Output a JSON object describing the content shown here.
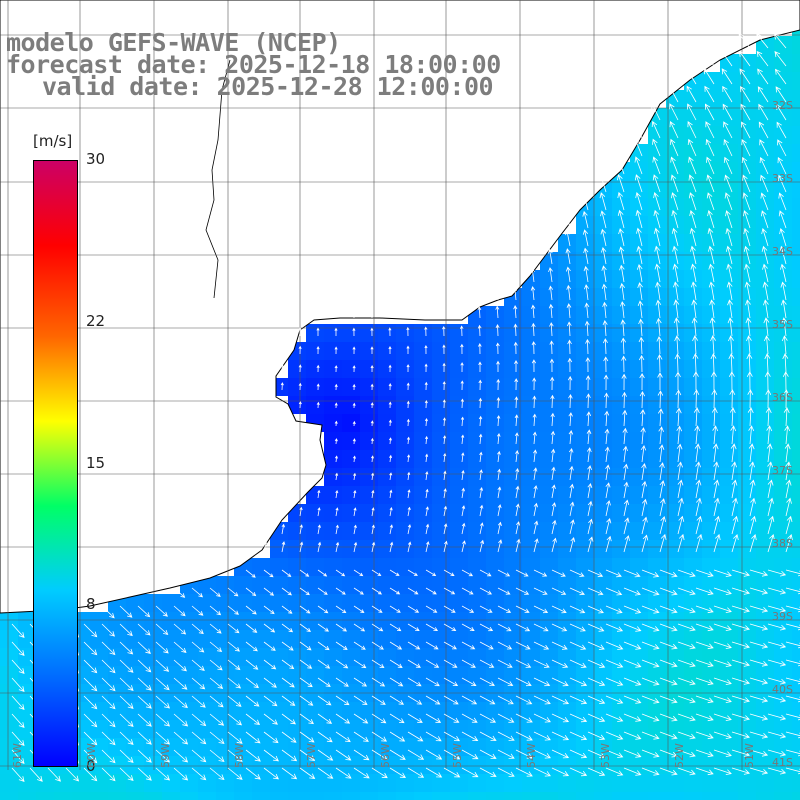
{
  "title": {
    "line1": "modelo GEFS-WAVE (NCEP)",
    "line2": "forecast date: 2025-12-18 18:00:00",
    "line3": "valid date: 2025-12-28 12:00:00"
  },
  "colorbar": {
    "unit": "[m/s]",
    "ticks": [
      "30",
      "22",
      "15",
      "8",
      "0"
    ],
    "tick_values": [
      30,
      22,
      15,
      8,
      0
    ],
    "min": 0,
    "max": 30,
    "colors": [
      "#0000ff",
      "#0066ff",
      "#00ccff",
      "#00ff66",
      "#ffff00",
      "#ff6600",
      "#ff0000",
      "#cc0066"
    ]
  },
  "map": {
    "land_color": "#ffffff",
    "coast_color": "#000000",
    "grid_color": "#555555",
    "lat_labels": [
      "32S",
      "33S",
      "34S",
      "35S",
      "36S",
      "37S",
      "38S",
      "39S",
      "40S",
      "41S"
    ],
    "lon_labels": [
      "61W",
      "60W",
      "59W",
      "58W",
      "57W",
      "56W",
      "55W",
      "54W",
      "53W",
      "52W",
      "51W"
    ],
    "field_description_values": {
      "calm_center_speed": 1,
      "open_ocean_speed": 9
    }
  }
}
